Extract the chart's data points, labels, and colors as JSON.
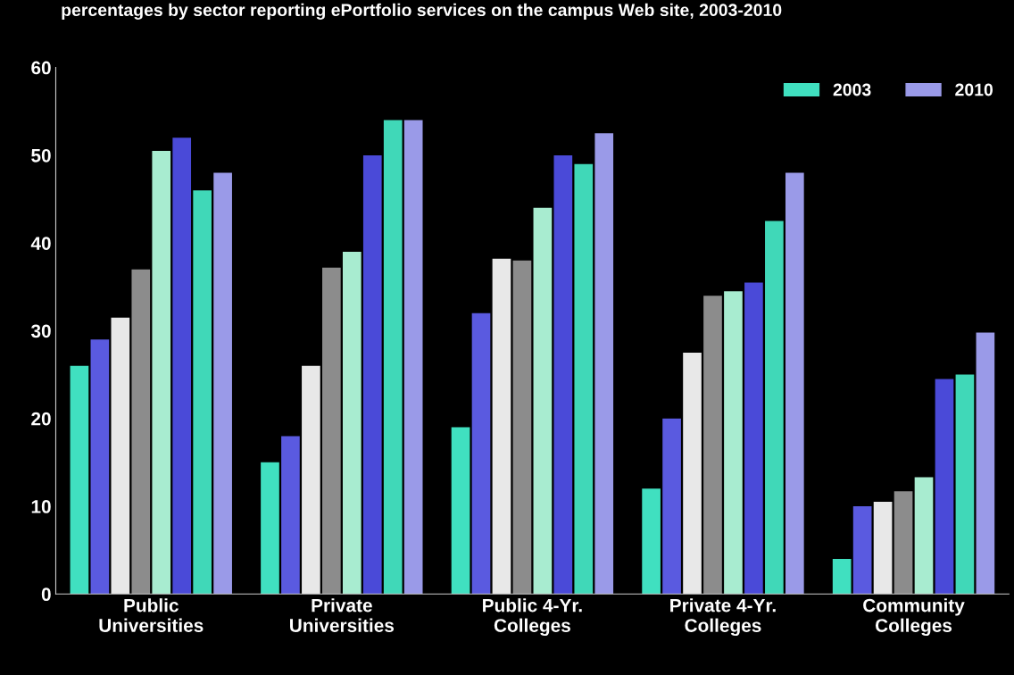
{
  "chart_data": {
    "type": "bar",
    "title": "percentages by sector reporting ePortfolio services on the campus Web site, 2003-2010",
    "categories": [
      "Public\nUniversities",
      "Private\nUniversities",
      "Public 4-Yr.\nColleges",
      "Private 4-Yr.\nColleges",
      "Community\nColleges"
    ],
    "series": [
      {
        "name": "2003",
        "color": "#40e0c0",
        "values": [
          26,
          15,
          19,
          12,
          4
        ]
      },
      {
        "color": "#5a5ae0",
        "values": [
          29,
          18,
          32,
          20,
          10
        ]
      },
      {
        "color": "#e8e8e8",
        "values": [
          31.5,
          26,
          38.2,
          27.5,
          10.5
        ]
      },
      {
        "color": "#8c8c8c",
        "values": [
          37,
          37.2,
          38,
          34,
          11.7
        ]
      },
      {
        "color": "#a8ecd0",
        "values": [
          50.5,
          39,
          44,
          34.5,
          13.3
        ]
      },
      {
        "color": "#4a4ad8",
        "values": [
          52,
          50,
          50,
          35.5,
          24.5
        ]
      },
      {
        "color": "#40d8b8",
        "values": [
          46,
          54,
          49,
          42.5,
          25
        ]
      },
      {
        "name": "2010",
        "color": "#9a9ae8",
        "values": [
          48,
          54,
          52.5,
          48,
          29.8
        ]
      }
    ],
    "ylim": [
      0,
      60
    ],
    "yticks": [
      0,
      10,
      20,
      30,
      40,
      50,
      60
    ],
    "grid": false,
    "legend": "top right"
  }
}
